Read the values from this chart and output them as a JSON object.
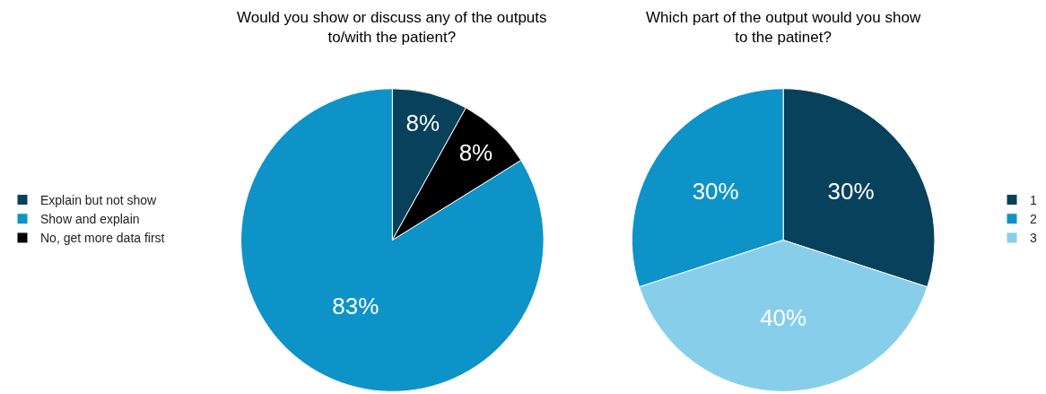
{
  "chart_data": [
    {
      "type": "pie",
      "title": "Would you show or discuss any of the outputs\nto/with the patient?",
      "categories": [
        "Explain but not show",
        "Show and explain",
        "No, get more data first"
      ],
      "values": [
        8,
        83,
        8
      ],
      "value_labels": [
        "8%",
        "83%",
        "8%"
      ],
      "colors": [
        "#08415c",
        "#0e93c8",
        "#000000"
      ],
      "legend": "left"
    },
    {
      "type": "pie",
      "title": "Which part of the output would you show\nto the patinet?",
      "categories": [
        "1",
        "2",
        "3"
      ],
      "values": [
        30,
        30,
        40
      ],
      "value_labels": [
        "30%",
        "30%",
        "40%"
      ],
      "colors": [
        "#08415c",
        "#0e93c8",
        "#87ceeb"
      ],
      "legend": "right"
    }
  ]
}
